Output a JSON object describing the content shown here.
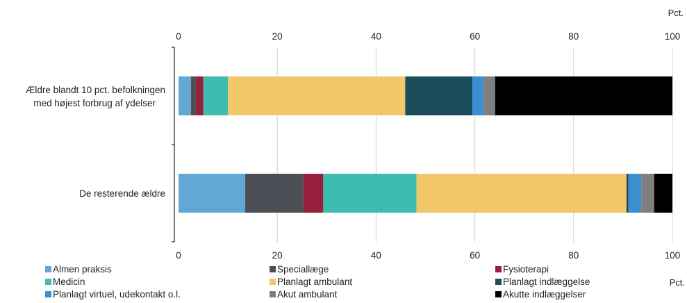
{
  "chart_data": {
    "type": "bar",
    "orientation": "horizontal",
    "stacked": true,
    "unit_label": "Pct.",
    "xlim": [
      0,
      100
    ],
    "xticks": [
      0,
      20,
      40,
      60,
      80,
      100
    ],
    "grid": true,
    "legend_position": "bottom",
    "categories": [
      "Ældre blandt 10 pct. befolkningen med højest forbrug af ydelser",
      "De resterende ældre"
    ],
    "series": [
      {
        "name": "Almen praksis",
        "color": "#62a8d4",
        "values": [
          2.5,
          13.5
        ]
      },
      {
        "name": "Speciallæge",
        "color": "#4c4f55",
        "values": [
          1.0,
          11.8
        ]
      },
      {
        "name": "Fysioterapi",
        "color": "#98203f",
        "values": [
          1.5,
          4.0
        ]
      },
      {
        "name": "Medicin",
        "color": "#3dbcb0",
        "values": [
          5.0,
          18.9
        ]
      },
      {
        "name": "Planlagt ambulant",
        "color": "#f2c76a",
        "values": [
          35.9,
          42.5
        ]
      },
      {
        "name": "Planlagt indlæggelse",
        "color": "#1b4d5c",
        "values": [
          13.6,
          0.4
        ]
      },
      {
        "name": "Planlagt virtuel, udekontakt o.l.",
        "color": "#3b8fd0",
        "values": [
          2.2,
          2.6
        ]
      },
      {
        "name": "Akut ambulant",
        "color": "#7f7f7f",
        "values": [
          2.4,
          2.6
        ]
      },
      {
        "name": "Akutte indlæggelser",
        "color": "#000000",
        "values": [
          35.9,
          3.7
        ]
      }
    ]
  }
}
